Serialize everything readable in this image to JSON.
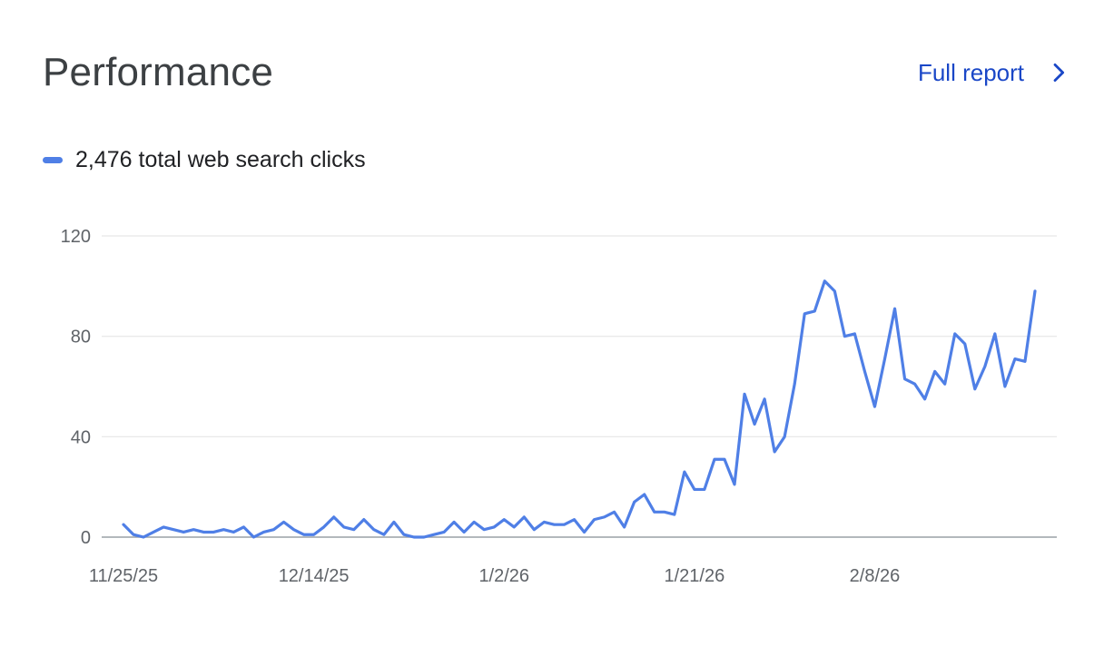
{
  "header": {
    "title": "Performance",
    "full_report_label": "Full report"
  },
  "legend": {
    "label": "2,476 total web search clicks",
    "color": "#4f7fe6"
  },
  "chart_data": {
    "type": "line",
    "title": "",
    "xlabel": "",
    "ylabel": "",
    "ylim": [
      0,
      120
    ],
    "yticks": [
      0,
      40,
      80,
      120
    ],
    "xtick_labels": [
      {
        "label": "11/25/25",
        "index": 0
      },
      {
        "label": "12/14/25",
        "index": 19
      },
      {
        "label": "1/2/26",
        "index": 38
      },
      {
        "label": "1/21/26",
        "index": 57
      },
      {
        "label": "2/8/26",
        "index": 75
      }
    ],
    "grid": true,
    "series": [
      {
        "name": "2,476 total web search clicks",
        "color": "#4f7fe6",
        "values": [
          5,
          1,
          0,
          2,
          4,
          3,
          2,
          3,
          2,
          2,
          3,
          2,
          4,
          0,
          2,
          3,
          6,
          3,
          1,
          1,
          4,
          8,
          4,
          3,
          7,
          3,
          1,
          6,
          1,
          0,
          0,
          1,
          2,
          6,
          2,
          6,
          3,
          4,
          7,
          4,
          8,
          3,
          6,
          5,
          5,
          7,
          2,
          7,
          8,
          10,
          4,
          14,
          17,
          10,
          10,
          9,
          26,
          19,
          19,
          31,
          31,
          21,
          57,
          45,
          55,
          34,
          40,
          61,
          89,
          90,
          102,
          98,
          80,
          81,
          66,
          52,
          71,
          91,
          63,
          61,
          55,
          66,
          61,
          81,
          77,
          59,
          68,
          81,
          60,
          71,
          70,
          98
        ]
      }
    ]
  }
}
